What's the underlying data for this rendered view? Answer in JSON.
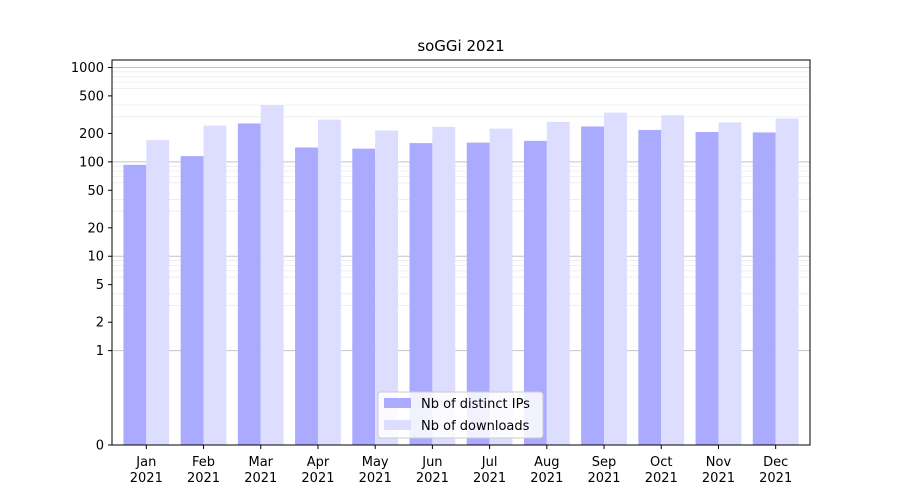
{
  "chart_data": {
    "type": "bar",
    "title": "soGGi 2021",
    "xlabel": "",
    "ylabel": "",
    "y_scale": "symlog",
    "ylim": [
      0,
      1200
    ],
    "y_ticks": [
      0,
      1,
      2,
      5,
      10,
      20,
      50,
      100,
      200,
      500,
      1000
    ],
    "y_tick_labels": [
      "0",
      "1",
      "2",
      "5",
      "10",
      "20",
      "50",
      "100",
      "200",
      "500",
      "1000"
    ],
    "categories": [
      "Jan\n2021",
      "Feb\n2021",
      "Mar\n2021",
      "Apr\n2021",
      "May\n2021",
      "Jun\n2021",
      "Jul\n2021",
      "Aug\n2021",
      "Sep\n2021",
      "Oct\n2021",
      "Nov\n2021",
      "Dec\n2021"
    ],
    "series": [
      {
        "name": "Nb of distinct IPs",
        "color": "#aaaaff",
        "values": [
          93,
          115,
          255,
          142,
          138,
          158,
          160,
          167,
          237,
          218,
          207,
          205
        ]
      },
      {
        "name": "Nb of downloads",
        "color": "#ddddff",
        "values": [
          170,
          242,
          400,
          280,
          215,
          235,
          225,
          265,
          332,
          312,
          262,
          288
        ]
      }
    ],
    "grid": true,
    "legend_position": "bottom-center"
  }
}
